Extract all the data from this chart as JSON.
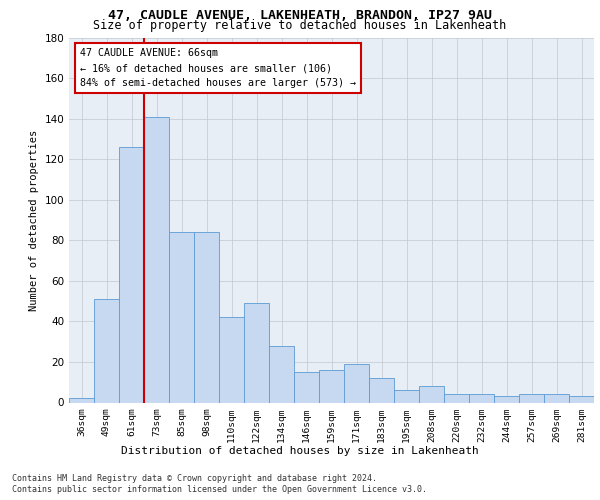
{
  "title_line1": "47, CAUDLE AVENUE, LAKENHEATH, BRANDON, IP27 9AU",
  "title_line2": "Size of property relative to detached houses in Lakenheath",
  "xlabel": "Distribution of detached houses by size in Lakenheath",
  "ylabel": "Number of detached properties",
  "categories": [
    "36sqm",
    "49sqm",
    "61sqm",
    "73sqm",
    "85sqm",
    "98sqm",
    "110sqm",
    "122sqm",
    "134sqm",
    "146sqm",
    "159sqm",
    "171sqm",
    "183sqm",
    "195sqm",
    "208sqm",
    "220sqm",
    "232sqm",
    "244sqm",
    "257sqm",
    "269sqm",
    "281sqm"
  ],
  "values": [
    2,
    51,
    126,
    141,
    84,
    84,
    42,
    49,
    28,
    15,
    16,
    19,
    12,
    6,
    8,
    4,
    4,
    3,
    4,
    4,
    3
  ],
  "bar_color": "#c6d9f0",
  "bar_edge_color": "#5b9bd5",
  "ylim": [
    0,
    180
  ],
  "yticks": [
    0,
    20,
    40,
    60,
    80,
    100,
    120,
    140,
    160,
    180
  ],
  "annotation_line1": "47 CAUDLE AVENUE: 66sqm",
  "annotation_line2": "← 16% of detached houses are smaller (106)",
  "annotation_line3": "84% of semi-detached houses are larger (573) →",
  "vline_x": 2.5,
  "vline_color": "#cc0000",
  "annotation_box_color": "#cc0000",
  "annotation_box_facecolor": "white",
  "footer_line1": "Contains HM Land Registry data © Crown copyright and database right 2024.",
  "footer_line2": "Contains public sector information licensed under the Open Government Licence v3.0.",
  "background_color": "#e8eef5",
  "grid_color": "#c0c8d0"
}
